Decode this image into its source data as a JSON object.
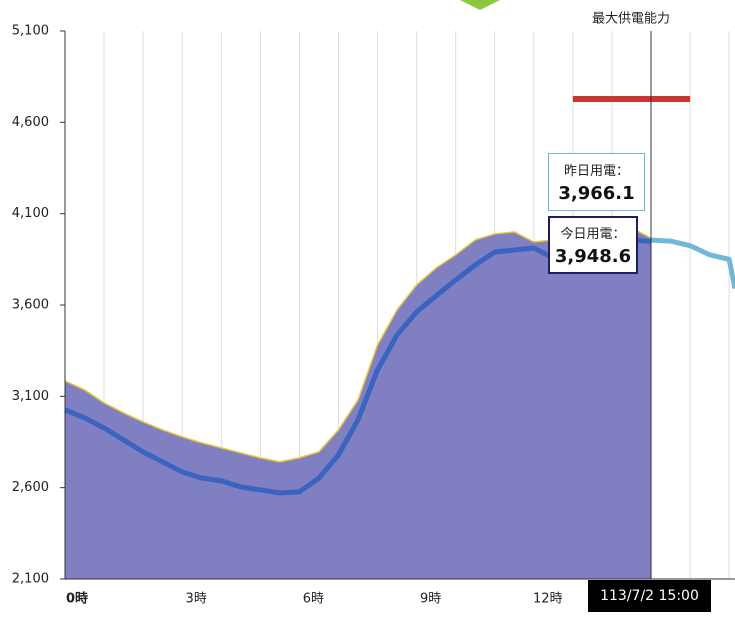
{
  "chart_data": {
    "type": "line",
    "xlim": [
      0,
      17.15
    ],
    "ylim": [
      2100,
      5100
    ],
    "yticks": [
      {
        "value": 2100,
        "label": "2,100"
      },
      {
        "value": 2600,
        "label": "2,600"
      },
      {
        "value": 3100,
        "label": "3,100"
      },
      {
        "value": 3600,
        "label": "3,600"
      },
      {
        "value": 4100,
        "label": "4,100"
      },
      {
        "value": 4600,
        "label": "4,600"
      },
      {
        "value": 5100,
        "label": "5,100"
      }
    ],
    "xticks": [
      {
        "value": 0,
        "label": "0時"
      },
      {
        "value": 3,
        "label": "3時"
      },
      {
        "value": 6,
        "label": "6時"
      },
      {
        "value": 9,
        "label": "9時"
      },
      {
        "value": 12,
        "label": "12時"
      }
    ],
    "xgrid": [
      1,
      2,
      3,
      4,
      5,
      6,
      7,
      8,
      9,
      10,
      11,
      12,
      13,
      14,
      15,
      16,
      17
    ],
    "x": [
      0,
      0.5,
      1,
      1.5,
      2,
      2.5,
      3,
      3.5,
      4,
      4.5,
      5,
      5.5,
      6,
      6.5,
      7,
      7.5,
      8,
      8.5,
      9,
      9.5,
      10,
      10.5,
      11,
      11.5,
      12,
      12.5,
      13,
      13.5,
      14,
      14.5,
      15
    ],
    "series": [
      {
        "name": "昨日用電：",
        "color": "#7f7fc2",
        "edge": "#e6c43c",
        "values": [
          3184,
          3135,
          3064,
          3009,
          2960,
          2916,
          2878,
          2845,
          2818,
          2790,
          2763,
          2741,
          2763,
          2796,
          2916,
          3080,
          3381,
          3573,
          3710,
          3803,
          3874,
          3956,
          3989,
          4000,
          3945,
          3956,
          4038,
          4066,
          4055,
          4022,
          3966.1
        ],
        "value_label": "3,966.1"
      },
      {
        "name": "今日用電：",
        "color": "#3a64c0",
        "values": [
          3026,
          2982,
          2927,
          2861,
          2796,
          2741,
          2686,
          2653,
          2637,
          2604,
          2588,
          2571,
          2577,
          2653,
          2779,
          2971,
          3245,
          3436,
          3562,
          3650,
          3737,
          3819,
          3890,
          3901,
          3912,
          3858,
          3890,
          3929,
          3940,
          3956,
          3948.6
        ],
        "value_label": "3,948.6"
      },
      {
        "color": "#6fb8d8",
        "x": [
          15,
          15.5,
          16,
          16.5,
          17,
          17.15
        ],
        "values": [
          3955,
          3950,
          3925,
          3875,
          3850,
          3690
        ]
      }
    ],
    "capacity": {
      "label": "最大供電能力",
      "value": 4728,
      "x": [
        13,
        16
      ],
      "color": "#cc3333"
    },
    "cursor": {
      "x": 15,
      "label": "113/7/2 15:00"
    }
  }
}
